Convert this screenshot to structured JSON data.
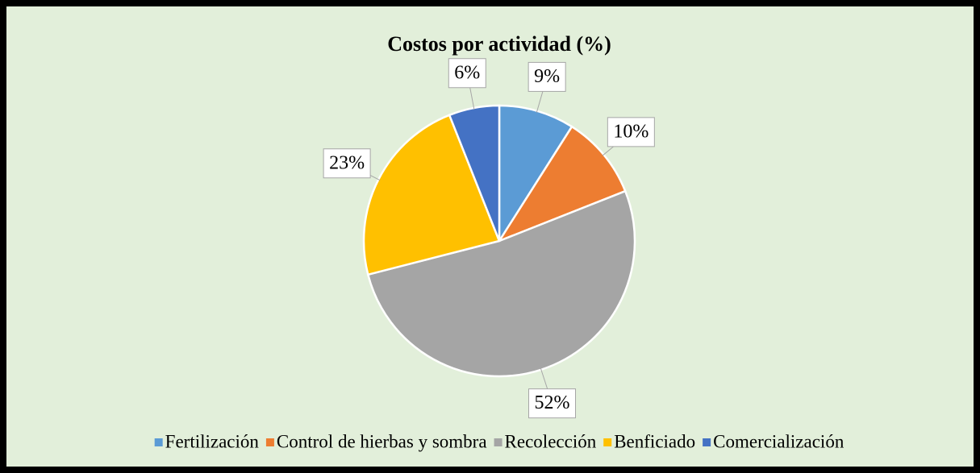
{
  "chart_data": {
    "type": "pie",
    "title": "Costos por actividad (%)",
    "categories": [
      "Fertilización",
      "Control de hierbas y sombra",
      "Recolección",
      "Benficiado",
      "Comercialización"
    ],
    "values": [
      9,
      10,
      52,
      23,
      6
    ],
    "value_labels": [
      "9%",
      "10%",
      "52%",
      "23%",
      "6%"
    ],
    "colors": [
      "#5b9bd5",
      "#ed7d31",
      "#a5a5a5",
      "#ffc000",
      "#4472c4"
    ],
    "legend": "bottom"
  }
}
